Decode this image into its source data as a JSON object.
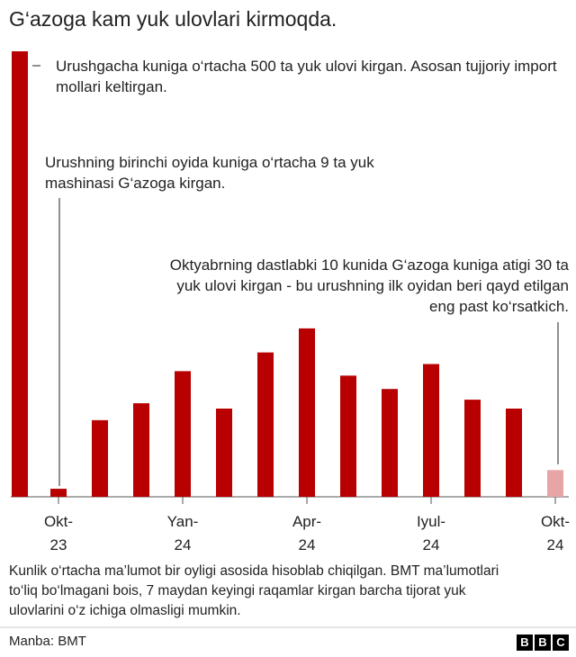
{
  "chart_data": {
    "type": "bar",
    "title": "G‘azoga kam yuk ulovlari kirmoqda.",
    "categories": [
      null,
      "Okt-23",
      null,
      null,
      "Yan-24",
      null,
      null,
      "Apr-24",
      null,
      null,
      "Iyul-24",
      null,
      null,
      "Okt-24"
    ],
    "values": [
      500,
      9,
      86,
      105,
      141,
      99,
      162,
      189,
      136,
      121,
      149,
      109,
      99,
      30
    ],
    "colors": [
      "#b80000",
      "#b80000",
      "#b80000",
      "#b80000",
      "#b80000",
      "#b80000",
      "#b80000",
      "#b80000",
      "#b80000",
      "#b80000",
      "#b80000",
      "#b80000",
      "#b80000",
      "#e8a5a8"
    ],
    "annotations": [
      "Urushgacha kuniga o‘rtacha 500 ta yuk ulovi kirgan. Asosan tujjoriy import mollari keltirgan.",
      "Urushning birinchi oyida kuniga o‘rtacha 9 ta yuk mashinasi G‘azoga kirgan.",
      "Oktyabrning dastlabki 10 kunida G‘azoga kuniga atigi 30 ta yuk ulovi kirgan - bu urushning ilk oyidan beri qayd etilgan eng past ko‘rsatkich."
    ],
    "note": "Kunlik o‘rtacha ma’lumot bir oyligi asosida hisoblab chiqilgan. BMT ma’lumotlari to‘liq bo‘lmagani bois, 7 maydan keyingi raqamlar kirgan barcha tijorat yuk ulovlarini o‘z ichiga olmasligi mumkin.",
    "source": "Manba: BMT",
    "logo": [
      "B",
      "B",
      "C"
    ]
  }
}
